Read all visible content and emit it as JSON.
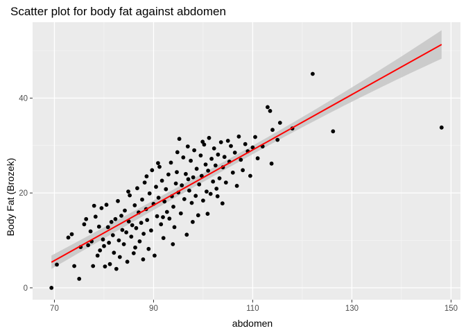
{
  "chart_data": {
    "type": "scatter",
    "title": "Scatter plot for body fat against abdomen",
    "xlabel": "abdomen",
    "ylabel": "Body Fat (Brozek)",
    "xlim": [
      65.6,
      151.9
    ],
    "ylim": [
      -2.5,
      56
    ],
    "xticks": [
      70,
      90,
      110,
      130,
      150
    ],
    "yticks": [
      0,
      20,
      40
    ],
    "grid": true,
    "legend": "none",
    "colors": {
      "panel": "#ebebeb",
      "grid_major": "#ffffff",
      "grid_minor": "#f5f5f5",
      "points": "#000000",
      "fit_line": "#ff0000",
      "ribbon": "#c8c8c8"
    },
    "fit": {
      "method": "lm",
      "x": [
        69.4,
        148.1
      ],
      "y": [
        5.4,
        51.3
      ],
      "ci_lower_start": 4.0,
      "ci_upper_start": 6.8,
      "ci_lower_end": 48.3,
      "ci_upper_end": 54.3
    },
    "points": [
      [
        69.4,
        0.0
      ],
      [
        70.5,
        4.9
      ],
      [
        72.8,
        10.6
      ],
      [
        73.5,
        11.3
      ],
      [
        74.0,
        4.6
      ],
      [
        75.0,
        1.9
      ],
      [
        75.3,
        8.6
      ],
      [
        76.0,
        13.4
      ],
      [
        76.4,
        14.5
      ],
      [
        76.8,
        9.0
      ],
      [
        77.3,
        11.9
      ],
      [
        77.5,
        9.8
      ],
      [
        77.8,
        4.6
      ],
      [
        78.0,
        17.3
      ],
      [
        78.3,
        15.0
      ],
      [
        78.7,
        6.8
      ],
      [
        79.0,
        12.9
      ],
      [
        79.2,
        7.9
      ],
      [
        79.5,
        16.8
      ],
      [
        79.8,
        10.2
      ],
      [
        80.0,
        8.8
      ],
      [
        80.2,
        4.5
      ],
      [
        80.5,
        17.5
      ],
      [
        80.8,
        12.8
      ],
      [
        81.0,
        9.5
      ],
      [
        81.2,
        5.0
      ],
      [
        81.5,
        13.9
      ],
      [
        81.8,
        11.1
      ],
      [
        82.0,
        7.4
      ],
      [
        82.3,
        14.5
      ],
      [
        82.5,
        4.0
      ],
      [
        82.8,
        18.3
      ],
      [
        83.0,
        10.0
      ],
      [
        83.2,
        6.5
      ],
      [
        83.5,
        15.2
      ],
      [
        83.7,
        12.2
      ],
      [
        84.0,
        9.2
      ],
      [
        84.2,
        16.3
      ],
      [
        84.5,
        11.7
      ],
      [
        84.7,
        5.5
      ],
      [
        85.0,
        14.0
      ],
      [
        85.2,
        19.5
      ],
      [
        85.5,
        10.8
      ],
      [
        85.7,
        13.2
      ],
      [
        86.0,
        7.3
      ],
      [
        86.2,
        17.4
      ],
      [
        86.5,
        12.6
      ],
      [
        86.7,
        21.0
      ],
      [
        87.0,
        15.9
      ],
      [
        87.2,
        9.8
      ],
      [
        87.5,
        13.7
      ],
      [
        87.7,
        18.6
      ],
      [
        88.0,
        11.4
      ],
      [
        88.2,
        22.2
      ],
      [
        88.5,
        16.6
      ],
      [
        88.7,
        14.3
      ],
      [
        89.0,
        8.2
      ],
      [
        89.2,
        19.9
      ],
      [
        89.5,
        12.1
      ],
      [
        89.7,
        24.8
      ],
      [
        90.0,
        17.7
      ],
      [
        90.2,
        6.8
      ],
      [
        90.5,
        21.3
      ],
      [
        90.7,
        15.1
      ],
      [
        91.0,
        19.0
      ],
      [
        91.2,
        25.5
      ],
      [
        91.5,
        13.4
      ],
      [
        91.7,
        22.6
      ],
      [
        92.0,
        10.5
      ],
      [
        92.2,
        18.2
      ],
      [
        92.5,
        20.8
      ],
      [
        92.7,
        16.0
      ],
      [
        93.0,
        23.9
      ],
      [
        93.2,
        14.6
      ],
      [
        93.5,
        26.4
      ],
      [
        93.7,
        19.3
      ],
      [
        94.0,
        17.1
      ],
      [
        94.2,
        12.8
      ],
      [
        94.5,
        22.0
      ],
      [
        94.7,
        24.4
      ],
      [
        95.0,
        20.1
      ],
      [
        95.2,
        31.4
      ],
      [
        95.5,
        15.7
      ],
      [
        95.7,
        21.6
      ],
      [
        96.0,
        27.5
      ],
      [
        96.2,
        18.7
      ],
      [
        96.5,
        24.0
      ],
      [
        96.7,
        11.2
      ],
      [
        97.0,
        22.9
      ],
      [
        97.2,
        20.5
      ],
      [
        97.5,
        26.8
      ],
      [
        97.7,
        17.9
      ],
      [
        98.0,
        23.3
      ],
      [
        98.2,
        29.0
      ],
      [
        98.5,
        19.4
      ],
      [
        98.7,
        25.1
      ],
      [
        99.0,
        15.3
      ],
      [
        99.2,
        21.8
      ],
      [
        99.5,
        27.9
      ],
      [
        99.7,
        23.6
      ],
      [
        100.0,
        18.4
      ],
      [
        100.2,
        30.2
      ],
      [
        100.5,
        26.0
      ],
      [
        100.7,
        20.3
      ],
      [
        101.0,
        24.7
      ],
      [
        101.2,
        31.6
      ],
      [
        101.5,
        19.8
      ],
      [
        101.7,
        27.2
      ],
      [
        102.0,
        22.4
      ],
      [
        102.2,
        29.4
      ],
      [
        102.5,
        25.8
      ],
      [
        102.7,
        20.9
      ],
      [
        103.0,
        28.1
      ],
      [
        103.3,
        23.1
      ],
      [
        103.6,
        30.7
      ],
      [
        104.0,
        25.4
      ],
      [
        104.3,
        27.6
      ],
      [
        104.6,
        22.2
      ],
      [
        105.0,
        31.0
      ],
      [
        105.3,
        26.6
      ],
      [
        105.6,
        29.9
      ],
      [
        106.0,
        24.3
      ],
      [
        106.4,
        28.5
      ],
      [
        106.8,
        21.5
      ],
      [
        107.2,
        31.9
      ],
      [
        107.6,
        27.0
      ],
      [
        108.0,
        24.8
      ],
      [
        108.5,
        30.3
      ],
      [
        109.0,
        28.8
      ],
      [
        109.5,
        23.6
      ],
      [
        110.0,
        29.6
      ],
      [
        110.5,
        31.8
      ],
      [
        111.0,
        27.3
      ],
      [
        112.0,
        29.8
      ],
      [
        113.0,
        38.1
      ],
      [
        113.5,
        37.3
      ],
      [
        113.8,
        26.2
      ],
      [
        114.0,
        33.3
      ],
      [
        115.0,
        31.2
      ],
      [
        115.5,
        34.8
      ],
      [
        118.0,
        33.6
      ],
      [
        122.1,
        45.1
      ],
      [
        126.2,
        33.0
      ],
      [
        148.1,
        33.8
      ],
      [
        86.3,
        8.5
      ],
      [
        88.6,
        23.5
      ],
      [
        91.9,
        14.9
      ],
      [
        94.8,
        28.6
      ],
      [
        97.9,
        13.9
      ],
      [
        100.9,
        15.6
      ],
      [
        103.9,
        17.8
      ],
      [
        84.9,
        20.3
      ],
      [
        87.9,
        6.0
      ],
      [
        90.9,
        26.3
      ],
      [
        93.9,
        9.2
      ],
      [
        96.9,
        29.8
      ],
      [
        99.9,
        30.8
      ],
      [
        102.9,
        19.3
      ]
    ]
  }
}
